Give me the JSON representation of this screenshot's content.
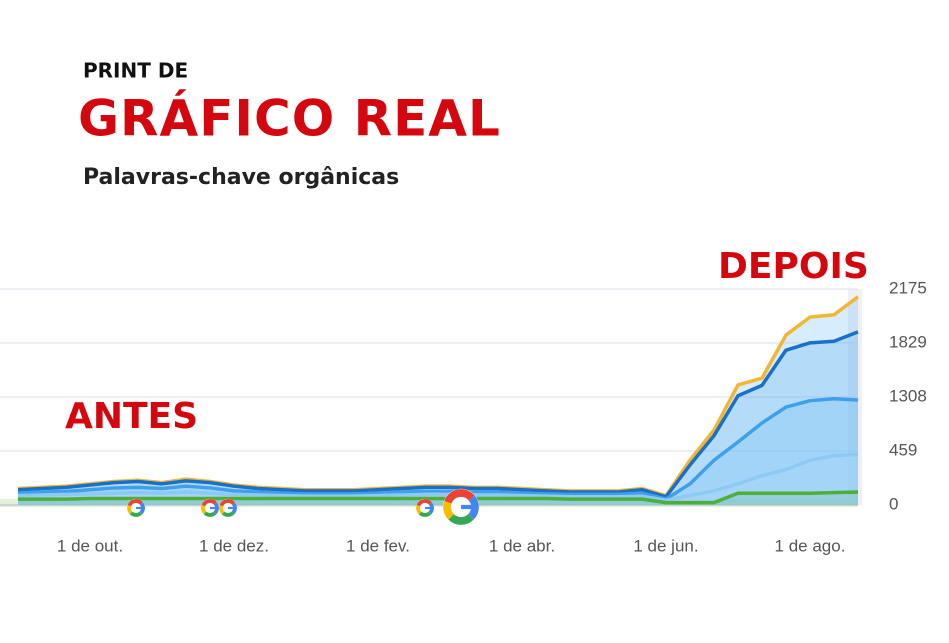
{
  "chart_data": {
    "type": "line",
    "kicker": "PRINT DE",
    "title": "GRÁFICO REAL",
    "subtitle": "Palavras-chave orgânicas",
    "annotations": [
      "ANTES",
      "DEPOIS"
    ],
    "categories": [
      null,
      null,
      null,
      "1 de out.",
      null,
      null,
      null,
      null,
      null,
      "1 de dez.",
      null,
      null,
      null,
      null,
      null,
      "1 de fev.",
      null,
      null,
      null,
      null,
      null,
      "1 de abr.",
      null,
      null,
      null,
      null,
      null,
      "1 de jun.",
      null,
      null,
      null,
      null,
      null,
      "1 de ago.",
      null,
      null
    ],
    "ylim": [
      0,
      2175
    ],
    "yticks": [
      0,
      459,
      1308,
      1829,
      2175
    ],
    "grid": true,
    "series": [
      {
        "color": "#f2b632",
        "values": [
          140,
          150,
          160,
          180,
          200,
          210,
          190,
          220,
          200,
          170,
          150,
          140,
          130,
          130,
          130,
          140,
          150,
          160,
          160,
          150,
          150,
          140,
          130,
          120,
          120,
          120,
          140,
          80,
          382,
          789,
          1424,
          1490,
          1880,
          1995,
          2010,
          2125
        ]
      },
      {
        "color": "#1a6fc9",
        "values": [
          130,
          140,
          150,
          170,
          190,
          200,
          180,
          205,
          190,
          160,
          140,
          130,
          120,
          120,
          120,
          130,
          140,
          150,
          150,
          140,
          140,
          130,
          120,
          110,
          110,
          110,
          130,
          70,
          340,
          700,
          1320,
          1420,
          1760,
          1830,
          1840,
          1900
        ]
      },
      {
        "color": "#3ea0ea",
        "values": [
          100,
          110,
          115,
          130,
          145,
          150,
          140,
          160,
          145,
          120,
          110,
          100,
          95,
          95,
          95,
          100,
          110,
          115,
          115,
          110,
          110,
          100,
          95,
          90,
          90,
          90,
          100,
          50,
          180,
          380,
          600,
          900,
          1150,
          1250,
          1280,
          1260
        ]
      },
      {
        "color": "#8ec9f5",
        "values": [
          80,
          85,
          90,
          95,
          100,
          105,
          100,
          110,
          100,
          90,
          85,
          80,
          75,
          75,
          75,
          80,
          85,
          90,
          90,
          85,
          85,
          80,
          75,
          70,
          70,
          70,
          75,
          40,
          80,
          120,
          180,
          250,
          300,
          380,
          420,
          430
        ]
      },
      {
        "color": "#4caf37",
        "values": [
          50,
          50,
          50,
          55,
          55,
          55,
          55,
          55,
          55,
          55,
          55,
          55,
          55,
          55,
          55,
          55,
          55,
          55,
          55,
          55,
          55,
          55,
          55,
          50,
          50,
          50,
          50,
          20,
          20,
          20,
          100,
          100,
          100,
          100,
          105,
          110
        ]
      }
    ]
  }
}
